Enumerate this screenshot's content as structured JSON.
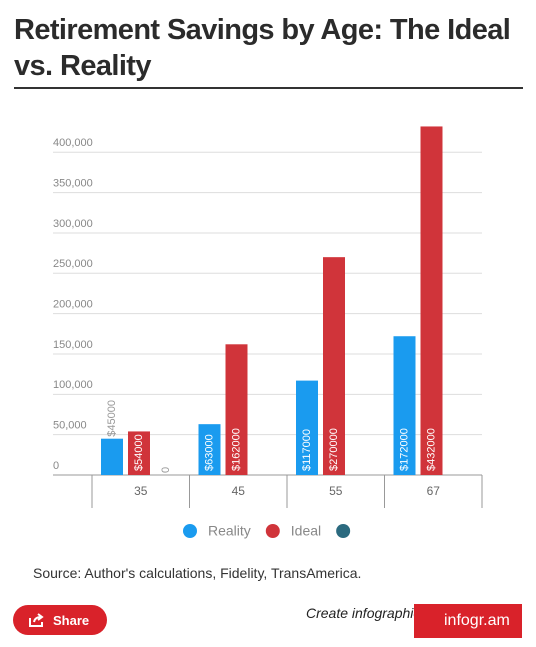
{
  "chart_data": {
    "type": "bar",
    "title": "Retirement Savings by Age: The Ideal vs. Reality",
    "categories": [
      "35",
      "45",
      "55",
      "67"
    ],
    "series": [
      {
        "name": "Reality",
        "color": "#1a9bef",
        "values": [
          45000,
          63000,
          117000,
          172000
        ],
        "value_labels": [
          "$45000",
          "$63000",
          "$117000",
          "$172000"
        ]
      },
      {
        "name": "Ideal",
        "color": "#d0343a",
        "values": [
          54000,
          162000,
          270000,
          432000
        ],
        "value_labels": [
          "$54000",
          "$162000",
          "$270000",
          "$432000"
        ]
      },
      {
        "name": null,
        "color": "#2b6a7f",
        "values": [
          0,
          null,
          null,
          null
        ]
      }
    ],
    "ylim": [
      0,
      440000
    ],
    "yticks": [
      0,
      {
        "value": 50000,
        "label": "50,000"
      },
      {
        "value": 100000,
        "label": "100,000"
      },
      {
        "value": 150000,
        "label": "150,000"
      },
      {
        "value": 200000,
        "label": "200,000"
      },
      {
        "value": 250000,
        "label": "250,000"
      },
      {
        "value": 300000,
        "label": "300,000"
      },
      {
        "value": 350000,
        "label": "350,000"
      },
      {
        "value": 400000,
        "label": "400,000"
      }
    ],
    "grid": true,
    "source": "Source: Author's calculations, Fidelity, TransAmerica."
  },
  "share_button": "Share",
  "footer_text": "Create infographics",
  "brand": "infogr.am"
}
